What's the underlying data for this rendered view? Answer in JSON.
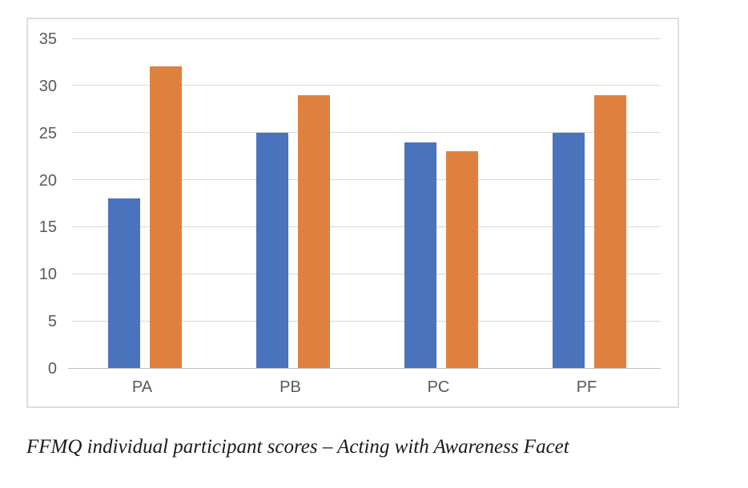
{
  "caption": "FFMQ individual participant scores – Acting with Awareness Facet",
  "colors": {
    "bar_blue": "#4A73BE",
    "bar_orange": "#DF813E",
    "gridline": "#D9D9D9",
    "axis_line": "#C0C0C0",
    "tick_label": "#595959",
    "chart_border": "#DDDDDD",
    "caption_color": "#1A1A1A",
    "background": "#FFFFFF"
  },
  "chart_data": {
    "type": "bar",
    "title": "",
    "xlabel": "",
    "ylabel": "",
    "categories": [
      "PA",
      "PB",
      "PC",
      "PF"
    ],
    "series": [
      {
        "name": "series-1",
        "color": "#4A73BE",
        "values": [
          18,
          25,
          24,
          25
        ]
      },
      {
        "name": "series-2",
        "color": "#DF813E",
        "values": [
          32,
          29,
          23,
          29
        ]
      }
    ],
    "ylim": [
      0,
      35
    ],
    "yticks": [
      0,
      5,
      10,
      15,
      20,
      25,
      30,
      35
    ],
    "grid": true,
    "legend_position": "none"
  }
}
